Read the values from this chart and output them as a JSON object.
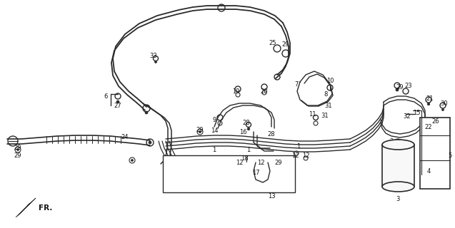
{
  "bg_color": "#f5f5f0",
  "line_color": "#3a3a3a",
  "fig_width": 6.37,
  "fig_height": 3.2,
  "dpi": 100
}
